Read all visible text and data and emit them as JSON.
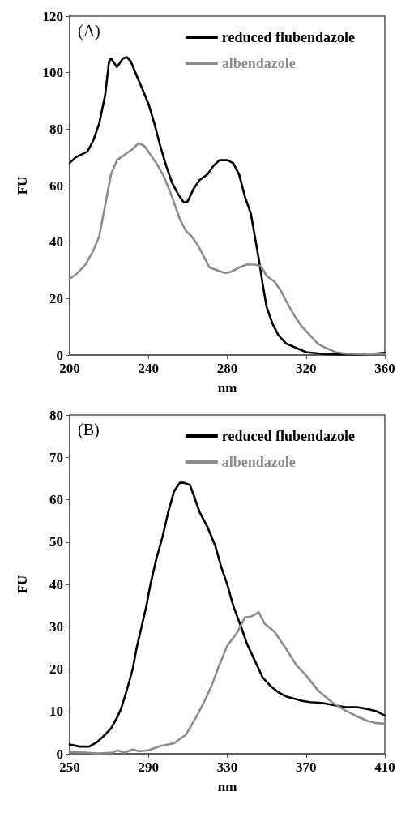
{
  "chart_data": [
    {
      "type": "line",
      "xlabel": "nm",
      "ylabel": "FU",
      "annotations": [
        "(A)"
      ],
      "xlim": [
        200,
        360
      ],
      "xticks": [
        200,
        240,
        280,
        320,
        360
      ],
      "ylim": [
        0,
        120
      ],
      "yticks": [
        0,
        20,
        40,
        60,
        80,
        100,
        120
      ],
      "grid": false,
      "legend": "top right",
      "marker": "none",
      "line_style": "solid",
      "series": [
        {
          "name": "reduced flubendazole",
          "color": "#000000",
          "x": [
            200,
            203,
            206,
            209,
            212,
            215,
            218,
            220,
            221,
            224,
            227,
            229,
            231,
            234,
            237,
            240,
            243,
            246,
            249,
            252,
            255,
            258,
            260,
            263,
            266,
            270,
            273,
            276,
            280,
            283,
            286,
            289,
            292,
            294,
            296,
            298,
            300,
            303,
            306,
            310,
            315,
            320,
            330,
            340,
            350,
            360
          ],
          "values": [
            68,
            70,
            71,
            72,
            76,
            82,
            92,
            104,
            105,
            102,
            105,
            105.5,
            104,
            99,
            94,
            89,
            82,
            74,
            67,
            61,
            57,
            54,
            54.5,
            59,
            62,
            64,
            67,
            69,
            69,
            68,
            64,
            56,
            50,
            42,
            34,
            25,
            17,
            11,
            7,
            4,
            2.5,
            1,
            0.3,
            0.2,
            0.2,
            0.8
          ]
        },
        {
          "name": "albendazole",
          "color": "#8c8c8c",
          "x": [
            200,
            204,
            208,
            212,
            215,
            218,
            221,
            224,
            228,
            232,
            235,
            238,
            241,
            244,
            248,
            252,
            256,
            259,
            262,
            265,
            268,
            271,
            275,
            279,
            282,
            286,
            290,
            294,
            297,
            300,
            304,
            307,
            310,
            314,
            318,
            322,
            326,
            330,
            335,
            340,
            350,
            360
          ],
          "values": [
            27,
            29,
            32,
            37,
            42,
            53,
            64,
            69,
            71,
            73,
            75,
            74,
            71,
            68,
            63,
            56,
            48,
            44,
            42,
            39,
            35,
            31,
            30,
            29,
            29.5,
            31,
            32,
            32,
            31.5,
            28,
            26,
            23,
            19,
            14,
            10,
            7,
            4,
            2.5,
            1,
            0.5,
            0.3,
            0.5
          ]
        }
      ]
    },
    {
      "type": "line",
      "xlabel": "nm",
      "ylabel": "FU",
      "annotations": [
        "(B)"
      ],
      "xlim": [
        250,
        410
      ],
      "xticks": [
        250,
        290,
        330,
        370,
        410
      ],
      "ylim": [
        0,
        80
      ],
      "yticks": [
        0,
        10,
        20,
        30,
        40,
        50,
        60,
        70,
        80
      ],
      "grid": false,
      "legend": "top right",
      "marker": "none",
      "line_style": "solid",
      "series": [
        {
          "name": "reduced flubendazole",
          "color": "#000000",
          "x": [
            250,
            255,
            260,
            264,
            268,
            271,
            274,
            276,
            279,
            282,
            284,
            286.5,
            289,
            291,
            294,
            297,
            300,
            303,
            306,
            308,
            311,
            313,
            316,
            320,
            324,
            327,
            330,
            333,
            337,
            340,
            344,
            348,
            352,
            356,
            360,
            364,
            368,
            372,
            378,
            384,
            390,
            396,
            402,
            406,
            410
          ],
          "values": [
            2.2,
            1.7,
            1.7,
            2.8,
            4.5,
            6,
            8.5,
            10.5,
            15,
            20,
            25,
            30,
            35,
            40,
            46,
            51,
            57,
            62,
            64,
            64,
            63.5,
            61,
            57,
            53.5,
            49,
            44,
            40,
            35,
            30,
            26,
            22,
            18,
            16,
            14.5,
            13.5,
            13,
            12.5,
            12.2,
            12,
            11.5,
            11,
            11,
            10.5,
            10,
            9
          ]
        },
        {
          "name": "albendazole",
          "color": "#8c8c8c",
          "x": [
            250,
            258,
            265,
            272,
            274,
            278,
            282,
            285,
            290,
            296,
            303,
            309,
            314,
            318,
            322,
            326,
            330,
            335,
            339,
            342,
            346,
            349,
            354,
            360,
            365,
            370,
            376,
            383,
            390,
            396,
            401,
            405,
            410
          ],
          "values": [
            0.4,
            0.3,
            0.1,
            0.3,
            0.8,
            0.3,
            1,
            0.6,
            0.8,
            1.8,
            2.5,
            4.5,
            8.5,
            12,
            16,
            21,
            25.5,
            28.6,
            32.2,
            32.4,
            33.4,
            30.7,
            28.8,
            24.7,
            21,
            18.5,
            15,
            12.2,
            10.2,
            8.8,
            7.8,
            7.3,
            7.1
          ]
        }
      ]
    }
  ]
}
